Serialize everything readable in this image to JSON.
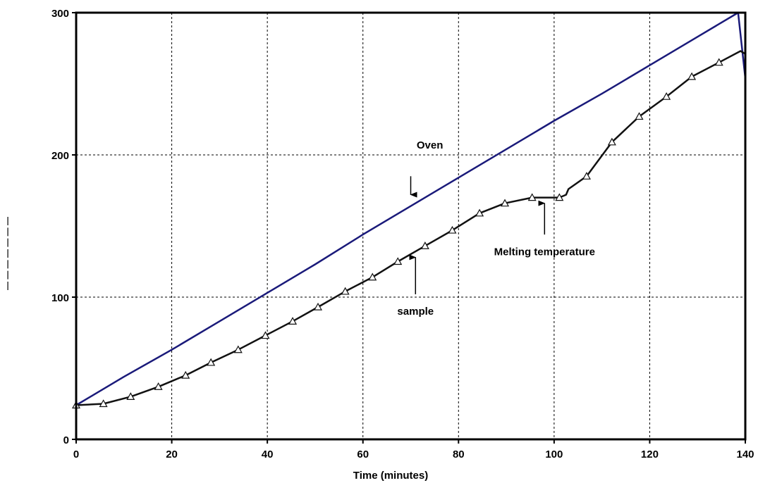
{
  "chart_data": {
    "type": "line",
    "title": "",
    "xlabel": "Time (minutes)",
    "ylabel": "",
    "xlim": [
      0,
      140
    ],
    "ylim": [
      0,
      300
    ],
    "x_ticks": [
      "0",
      "20",
      "40",
      "60",
      "80",
      "100",
      "120",
      "140"
    ],
    "y_ticks": [
      "0",
      "100",
      "200",
      "300"
    ],
    "grid": true,
    "series": [
      {
        "name": "Oven",
        "color": "#1a1a7a",
        "points": [
          [
            0,
            24
          ],
          [
            10,
            44
          ],
          [
            20,
            63
          ],
          [
            30,
            83
          ],
          [
            40,
            103
          ],
          [
            50,
            123
          ],
          [
            60,
            144
          ],
          [
            70,
            164
          ],
          [
            80,
            184
          ],
          [
            90,
            204
          ],
          [
            100,
            224
          ],
          [
            110,
            243
          ],
          [
            120,
            263
          ],
          [
            130,
            283
          ],
          [
            138.5,
            300
          ]
        ],
        "drop": [
          [
            138.5,
            300
          ],
          [
            140,
            254
          ]
        ]
      },
      {
        "name": "sample",
        "color": "#111111",
        "marker": "triangle",
        "points": [
          [
            0,
            24
          ],
          [
            5.7,
            25
          ],
          [
            11.4,
            30
          ],
          [
            17.2,
            37
          ],
          [
            22.9,
            45
          ],
          [
            28.2,
            54
          ],
          [
            33.9,
            63
          ],
          [
            39.6,
            73
          ],
          [
            45.3,
            83
          ],
          [
            50.6,
            93
          ],
          [
            56.3,
            104
          ],
          [
            62,
            114
          ],
          [
            67.3,
            125
          ],
          [
            73,
            136
          ],
          [
            78.7,
            147
          ],
          [
            84.4,
            159
          ],
          [
            89.7,
            166
          ],
          [
            95.4,
            170
          ],
          [
            101.1,
            170
          ],
          [
            102.5,
            172
          ],
          [
            103,
            176
          ],
          [
            106.8,
            185
          ],
          [
            112.1,
            209
          ],
          [
            117.8,
            227
          ],
          [
            123.5,
            241
          ],
          [
            128.8,
            255
          ],
          [
            134.5,
            265
          ],
          [
            139,
            273
          ],
          [
            140,
            271
          ]
        ],
        "marker_points": [
          [
            0,
            24
          ],
          [
            5.7,
            25
          ],
          [
            11.4,
            30
          ],
          [
            17.2,
            37
          ],
          [
            22.9,
            45
          ],
          [
            28.2,
            54
          ],
          [
            33.9,
            63
          ],
          [
            39.6,
            73
          ],
          [
            45.3,
            83
          ],
          [
            50.6,
            93
          ],
          [
            56.3,
            104
          ],
          [
            62,
            114
          ],
          [
            67.3,
            125
          ],
          [
            73,
            136
          ],
          [
            78.7,
            147
          ],
          [
            84.4,
            159
          ],
          [
            89.7,
            166
          ],
          [
            95.4,
            170
          ],
          [
            101.1,
            170
          ],
          [
            106.8,
            185
          ],
          [
            112.1,
            209
          ],
          [
            117.8,
            227
          ],
          [
            123.5,
            241
          ],
          [
            128.8,
            255
          ],
          [
            134.5,
            265
          ]
        ]
      }
    ],
    "annotations": [
      {
        "text": "Oven",
        "label_at": [
          74,
          207
        ],
        "arrow_from": [
          70,
          185
        ],
        "arrow_to": [
          70,
          172
        ]
      },
      {
        "text": "sample",
        "label_at": [
          71,
          90
        ],
        "arrow_from": [
          71,
          102
        ],
        "arrow_to": [
          71,
          128
        ]
      },
      {
        "text": "Melting temperature",
        "label_at": [
          98,
          132
        ],
        "arrow_from": [
          98,
          144
        ],
        "arrow_to": [
          98,
          166
        ]
      }
    ]
  }
}
